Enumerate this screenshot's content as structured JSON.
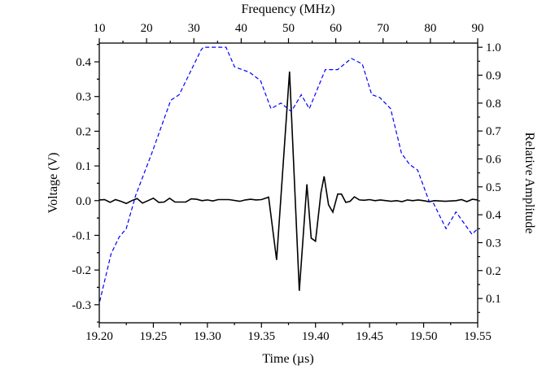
{
  "chart_data": {
    "type": "line",
    "title": "",
    "xlabel": "Time (µs)",
    "ylabel": "Voltage (V)",
    "x2label": "Frequency (MHz)",
    "y2label": "Relative Amplitude",
    "xlim": [
      19.2,
      19.55
    ],
    "ylim": [
      -0.352,
      0.454
    ],
    "x2lim": [
      10,
      90
    ],
    "y2lim": [
      0.013,
      1.015
    ],
    "xticks": [
      "19.20",
      "19.25",
      "19.30",
      "19.35",
      "19.40",
      "19.45",
      "19.50",
      "19.55"
    ],
    "yticks": [
      "-0.3",
      "-0.2",
      "-0.1",
      "0.0",
      "0.1",
      "0.2",
      "0.3",
      "0.4"
    ],
    "x2ticks": [
      "10",
      "20",
      "30",
      "40",
      "50",
      "60",
      "70",
      "80",
      "90"
    ],
    "y2ticks": [
      "0.1",
      "0.2",
      "0.3",
      "0.4",
      "0.5",
      "0.6",
      "0.7",
      "0.8",
      "0.9",
      "1.0"
    ],
    "grid": false,
    "series": [
      {
        "axes": "bottom-left",
        "color": "#000000",
        "style": "solid",
        "x": [
          19.2,
          19.205,
          19.21,
          19.215,
          19.22,
          19.225,
          19.23,
          19.235,
          19.24,
          19.245,
          19.25,
          19.255,
          19.26,
          19.265,
          19.27,
          19.275,
          19.28,
          19.285,
          19.29,
          19.295,
          19.3,
          19.305,
          19.31,
          19.32,
          19.33,
          19.335,
          19.34,
          19.345,
          19.35,
          19.3566,
          19.364,
          19.376,
          19.385,
          19.392,
          19.396,
          19.4,
          19.405,
          19.408,
          19.412,
          19.416,
          19.4205,
          19.424,
          19.428,
          19.432,
          19.436,
          19.4406,
          19.445,
          19.45,
          19.455,
          19.46,
          19.47,
          19.475,
          19.48,
          19.485,
          19.49,
          19.495,
          19.5,
          19.505,
          19.51,
          19.52,
          19.53,
          19.535,
          19.54,
          19.545,
          19.55
        ],
        "y": [
          0.002,
          0.003,
          -0.005,
          0.003,
          -0.002,
          -0.008,
          0.0,
          0.006,
          -0.007,
          0.0,
          0.007,
          -0.005,
          -0.004,
          0.007,
          -0.004,
          -0.004,
          -0.004,
          0.005,
          0.004,
          0.0,
          0.002,
          -0.001,
          0.003,
          0.003,
          -0.002,
          0.002,
          0.004,
          0.002,
          0.003,
          0.01,
          -0.171,
          0.372,
          -0.26,
          0.047,
          -0.108,
          -0.117,
          0.023,
          0.07,
          -0.012,
          -0.033,
          0.019,
          0.019,
          -0.005,
          -0.002,
          0.011,
          0.002,
          0.001,
          0.003,
          0.0,
          0.002,
          -0.002,
          0.0,
          -0.003,
          0.002,
          0.0,
          0.002,
          0.0,
          -0.003,
          0.0,
          -0.002,
          0.0,
          0.003,
          -0.003,
          0.004,
          0.002
        ]
      },
      {
        "axes": "top-right",
        "color": "#0000ff",
        "style": "dashed",
        "x": [
          10.1,
          12.5,
          14.2,
          15.7,
          17.7,
          21.1,
          25.1,
          26.9,
          31.5,
          32.0,
          36.8,
          38.6,
          41.8,
          44.1,
          46.3,
          48.4,
          50.6,
          52.7,
          54.4,
          57.8,
          60.4,
          63.3,
          65.6,
          67.6,
          69.3,
          71.6,
          73.9,
          75.6,
          77.3,
          79.7,
          80.7,
          83.3,
          85.4,
          88.8,
          90.0
        ],
        "y": [
          0.09,
          0.26,
          0.32,
          0.35,
          0.47,
          0.62,
          0.81,
          0.83,
          0.99,
          1.0,
          1.0,
          0.93,
          0.91,
          0.88,
          0.78,
          0.8,
          0.77,
          0.83,
          0.78,
          0.92,
          0.92,
          0.96,
          0.94,
          0.83,
          0.82,
          0.78,
          0.62,
          0.58,
          0.56,
          0.45,
          0.44,
          0.35,
          0.41,
          0.33,
          0.35
        ]
      }
    ]
  }
}
